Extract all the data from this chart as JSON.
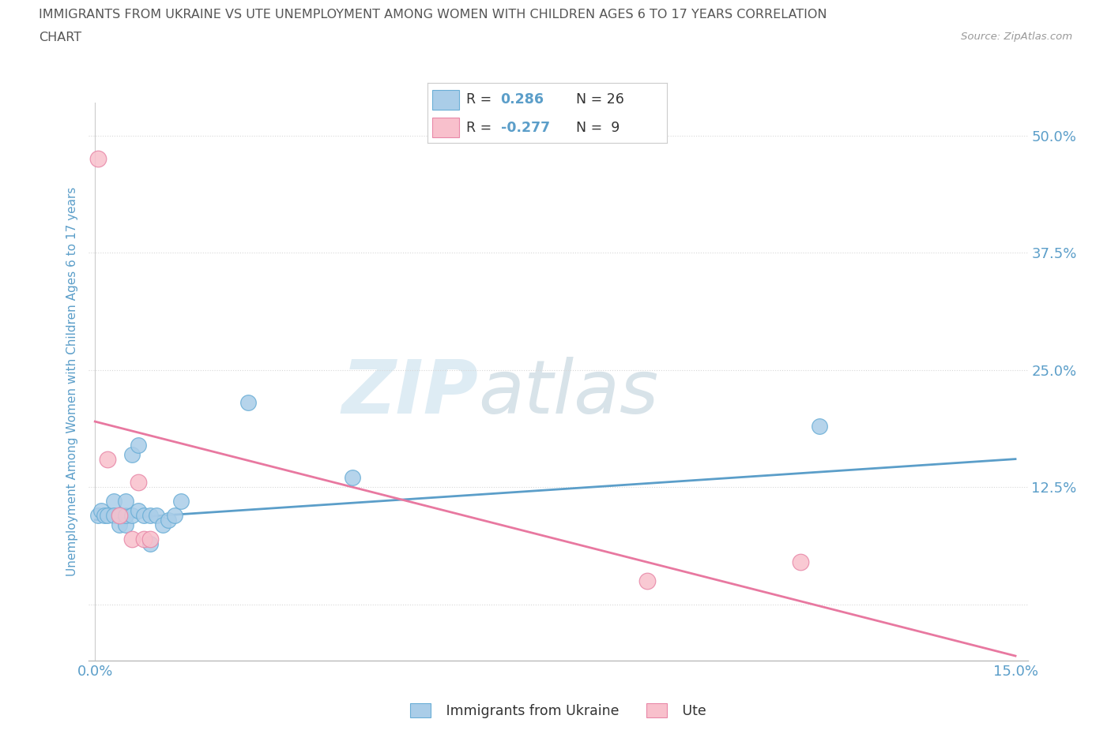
{
  "title_line1": "IMMIGRANTS FROM UKRAINE VS UTE UNEMPLOYMENT AMONG WOMEN WITH CHILDREN AGES 6 TO 17 YEARS CORRELATION",
  "title_line2": "CHART",
  "source_text": "Source: ZipAtlas.com",
  "ylabel": "Unemployment Among Women with Children Ages 6 to 17 years",
  "xlim": [
    -0.001,
    0.152
  ],
  "ylim": [
    -0.06,
    0.535
  ],
  "yticks": [
    0.0,
    0.125,
    0.25,
    0.375,
    0.5
  ],
  "ytick_labels": [
    "",
    "12.5%",
    "25.0%",
    "37.5%",
    "50.0%"
  ],
  "xticks": [
    0.0,
    0.025,
    0.05,
    0.075,
    0.1,
    0.125,
    0.15
  ],
  "xtick_labels": [
    "0.0%",
    "",
    "",
    "",
    "",
    "",
    "15.0%"
  ],
  "blue_x": [
    0.0005,
    0.001,
    0.0015,
    0.002,
    0.003,
    0.003,
    0.004,
    0.004,
    0.005,
    0.005,
    0.005,
    0.006,
    0.006,
    0.007,
    0.007,
    0.008,
    0.009,
    0.009,
    0.01,
    0.011,
    0.012,
    0.013,
    0.014,
    0.025,
    0.042,
    0.118
  ],
  "blue_y": [
    0.095,
    0.1,
    0.095,
    0.095,
    0.11,
    0.095,
    0.085,
    0.095,
    0.085,
    0.095,
    0.11,
    0.16,
    0.095,
    0.17,
    0.1,
    0.095,
    0.065,
    0.095,
    0.095,
    0.085,
    0.09,
    0.095,
    0.11,
    0.215,
    0.135,
    0.19
  ],
  "pink_x": [
    0.0005,
    0.002,
    0.004,
    0.006,
    0.007,
    0.008,
    0.009,
    0.09,
    0.115
  ],
  "pink_y": [
    0.475,
    0.155,
    0.095,
    0.07,
    0.13,
    0.07,
    0.07,
    0.025,
    0.045
  ],
  "blue_scatter_fc": "#aacde8",
  "blue_scatter_ec": "#6aaed6",
  "pink_scatter_fc": "#f8c0cc",
  "pink_scatter_ec": "#e888a8",
  "blue_trend_color": "#5b9ec9",
  "pink_trend_color": "#e878a0",
  "trend_blue_x0": 0.0,
  "trend_blue_x1": 0.15,
  "trend_blue_y0": 0.09,
  "trend_blue_y1": 0.155,
  "trend_pink_x0": 0.0,
  "trend_pink_x1": 0.15,
  "trend_pink_y0": 0.195,
  "trend_pink_y1": -0.055,
  "bg_color": "#ffffff",
  "grid_color": "#d8d8d8",
  "title_color": "#555555",
  "axis_color": "#5b9ec9",
  "source_color": "#999999",
  "legend_text_color": "#333333",
  "watermark_color": "#d0e4f0"
}
